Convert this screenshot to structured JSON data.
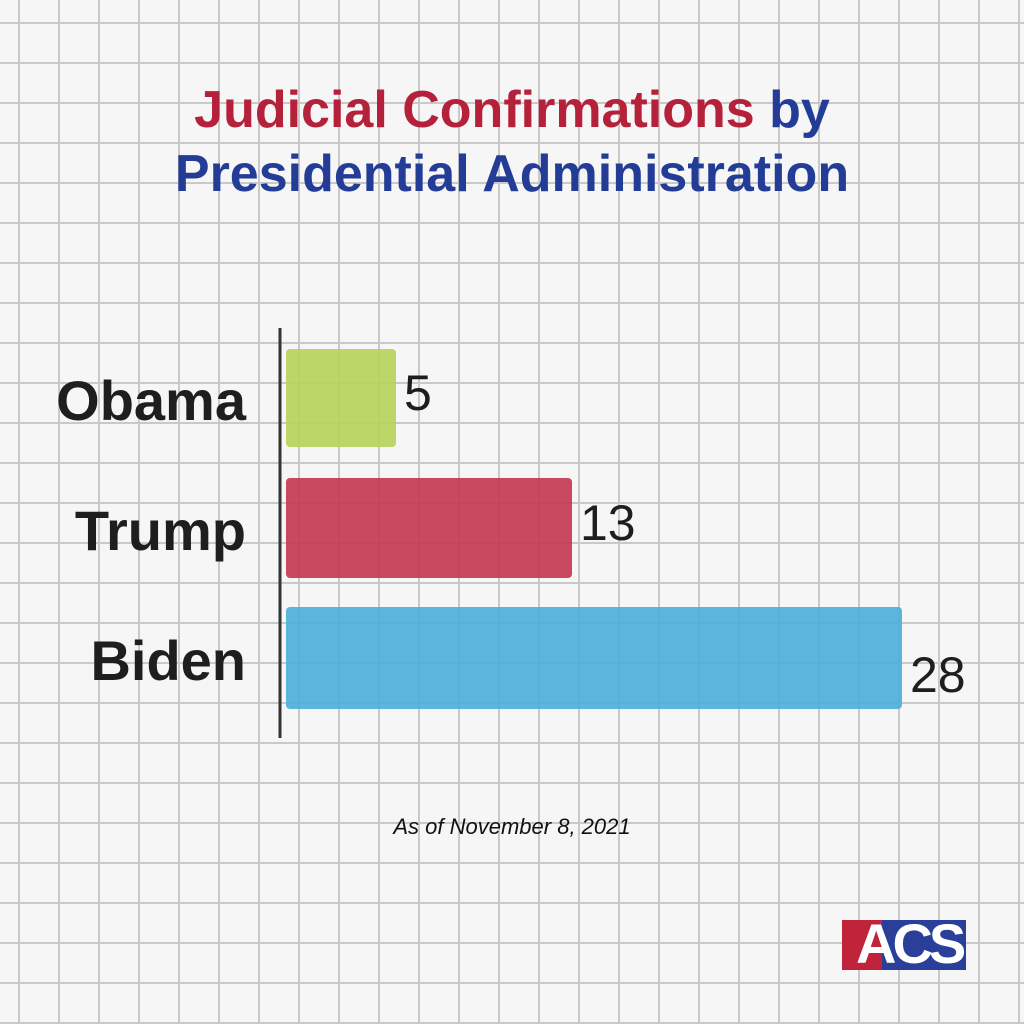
{
  "title": {
    "part1": "Judicial Confirmations",
    "part2": "by",
    "line2": "Presidential Administration"
  },
  "footnote": "As of November 8, 2021",
  "logo_text": "ACS",
  "chart_data": {
    "type": "bar",
    "orientation": "horizontal",
    "title": "Judicial Confirmations by Presidential Administration",
    "categories": [
      "Obama",
      "Trump",
      "Biden"
    ],
    "values": [
      5,
      13,
      28
    ],
    "colors": [
      "#b6d35a",
      "#c43a52",
      "#4eb0d8"
    ],
    "xlabel": "",
    "ylabel": "",
    "xlim": [
      0,
      28
    ],
    "grid": false,
    "legend": "none"
  }
}
